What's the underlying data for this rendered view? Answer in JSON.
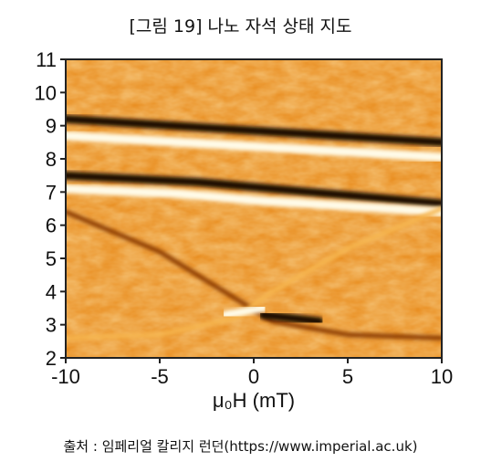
{
  "title": "[그림 19] 나노 자석 상태 지도",
  "source": "출처 : 임페리얼 칼리지 런던(https://www.imperial.ac.uk)",
  "chart_data": {
    "type": "heatmap",
    "xlabel": "μ₀H (mT)",
    "ylabel": "",
    "xlim": [
      -10,
      10
    ],
    "ylim": [
      2,
      11
    ],
    "x_ticks": [
      -10,
      -5,
      0,
      5,
      10
    ],
    "y_ticks": [
      2,
      3,
      4,
      5,
      6,
      7,
      8,
      9,
      10,
      11
    ],
    "x_tick_labels": [
      "-10",
      "-5",
      "0",
      "5",
      "10"
    ],
    "y_tick_labels": [
      "2",
      "3",
      "4",
      "5",
      "6",
      "7",
      "8",
      "9",
      "10",
      "11"
    ],
    "colormap": [
      "#1a0800",
      "#8a3a00",
      "#e88a1a",
      "#f6b650",
      "#fffbe8"
    ],
    "background_level": 0.55,
    "features": [
      {
        "name": "dark-band",
        "points": [
          [
            -10,
            9.2
          ],
          [
            10,
            8.5
          ]
        ],
        "level": 0.0
      },
      {
        "name": "bright-band",
        "points": [
          [
            -10,
            8.7
          ],
          [
            10,
            8.05
          ]
        ],
        "level": 1.0
      },
      {
        "name": "dark-band",
        "points": [
          [
            -10,
            7.5
          ],
          [
            -3,
            7.3
          ],
          [
            3,
            7.0
          ],
          [
            10,
            6.65
          ]
        ],
        "level": 0.05
      },
      {
        "name": "bright-band",
        "points": [
          [
            -10,
            7.1
          ],
          [
            -4,
            6.95
          ],
          [
            0,
            6.75
          ],
          [
            10,
            6.4
          ]
        ],
        "level": 0.95
      },
      {
        "name": "dark-arc",
        "points": [
          [
            -10,
            6.4
          ],
          [
            -5,
            5.2
          ],
          [
            -1,
            3.8
          ],
          [
            1,
            3.1
          ],
          [
            5,
            2.7
          ],
          [
            10,
            2.6
          ]
        ],
        "level": 0.2
      },
      {
        "name": "bright-arc",
        "points": [
          [
            -10,
            2.6
          ],
          [
            -5,
            2.7
          ],
          [
            -1,
            3.2
          ],
          [
            1,
            4.0
          ],
          [
            5,
            5.3
          ],
          [
            10,
            6.5
          ]
        ],
        "level": 0.85
      },
      {
        "name": "bright-spot",
        "points": [
          [
            -1.5,
            3.3
          ],
          [
            0.5,
            3.5
          ]
        ],
        "level": 1.0
      },
      {
        "name": "dark-spot",
        "points": [
          [
            0.5,
            3.3
          ],
          [
            3.5,
            3.1
          ]
        ],
        "level": 0.0
      }
    ]
  }
}
